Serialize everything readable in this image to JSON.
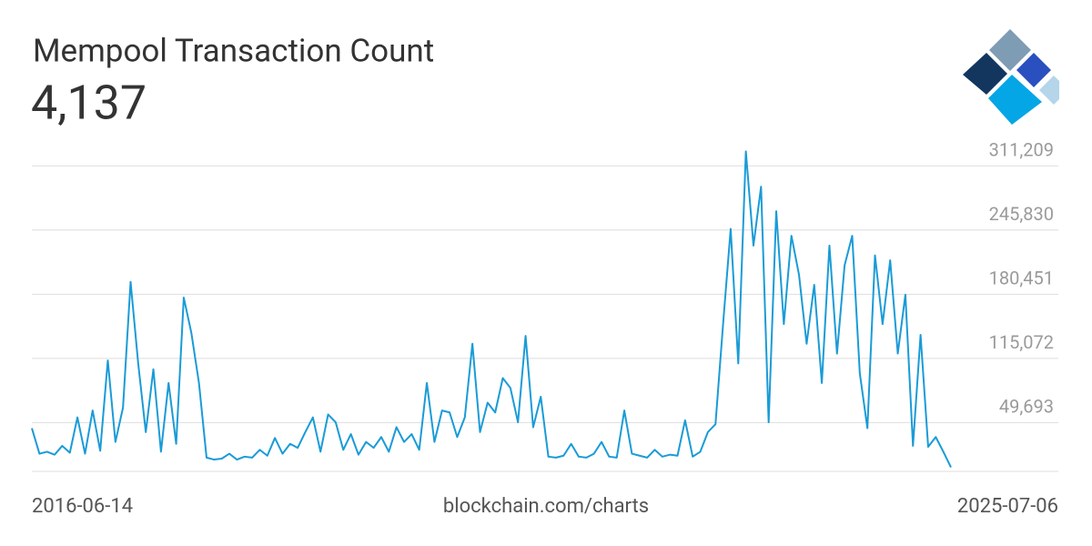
{
  "chart_data": {
    "type": "line",
    "title": "Mempool Transaction Count",
    "subtitle": "4,137",
    "source": "blockchain.com/charts",
    "color": "#1a9bd7",
    "grid": true,
    "ylim": [
      0,
      330000
    ],
    "yticks": [
      {
        "value": 49693,
        "label": "49,693"
      },
      {
        "value": 115072,
        "label": "115,072"
      },
      {
        "value": 180451,
        "label": "180,451"
      },
      {
        "value": 245830,
        "label": "245,830"
      },
      {
        "value": 311209,
        "label": "311,209"
      }
    ],
    "categories": [
      "2016-06-14",
      null,
      null,
      null,
      null,
      null,
      null,
      null,
      null,
      null,
      null,
      null,
      null,
      null,
      null,
      null,
      null,
      null,
      null,
      null,
      null,
      null,
      null,
      null,
      null,
      null,
      null,
      null,
      null,
      null,
      null,
      null,
      null,
      null,
      null,
      null,
      null,
      null,
      null,
      null,
      null,
      null,
      null,
      null,
      null,
      null,
      null,
      null,
      null,
      null,
      null,
      null,
      null,
      null,
      null,
      null,
      null,
      null,
      null,
      null,
      null,
      null,
      null,
      null,
      null,
      null,
      null,
      null,
      null,
      null,
      null,
      null,
      null,
      null,
      null,
      null,
      null,
      null,
      null,
      null,
      null,
      null,
      null,
      null,
      null,
      null,
      null,
      null,
      null,
      null,
      null,
      null,
      null,
      null,
      null,
      null,
      null,
      null,
      null,
      null,
      null,
      null,
      null,
      null,
      null,
      null,
      null,
      null,
      null,
      null,
      null,
      null,
      null,
      null,
      null,
      null,
      null,
      null,
      null,
      null,
      null,
      "2025-07-06"
    ],
    "values": [
      44000,
      18000,
      20000,
      17000,
      26000,
      19000,
      55000,
      18000,
      62000,
      21000,
      113000,
      30000,
      65000,
      193000,
      110000,
      40000,
      104000,
      20000,
      90000,
      28000,
      177000,
      141000,
      90000,
      14000,
      12000,
      13000,
      18000,
      12000,
      15000,
      14000,
      22000,
      16000,
      34000,
      18000,
      28000,
      24000,
      40000,
      55000,
      20000,
      58000,
      50000,
      22000,
      38000,
      17000,
      30000,
      24000,
      35000,
      20000,
      45000,
      30000,
      38000,
      22000,
      90000,
      30000,
      62000,
      60000,
      35000,
      55000,
      130000,
      40000,
      70000,
      60000,
      95000,
      85000,
      50000,
      138000,
      45000,
      76000,
      15000,
      14000,
      16000,
      28000,
      15000,
      14000,
      18000,
      30000,
      15000,
      14000,
      62000,
      18000,
      16000,
      14000,
      22000,
      15000,
      17000,
      16000,
      52000,
      15000,
      20000,
      40000,
      48000,
      150000,
      247000,
      110000,
      326000,
      230000,
      290000,
      50000,
      265000,
      150000,
      240000,
      200000,
      130000,
      190000,
      90000,
      230000,
      120000,
      210000,
      240000,
      100000,
      44000,
      220000,
      150000,
      215000,
      120000,
      180000,
      26000,
      139000,
      25000,
      35000,
      20000,
      4137
    ]
  }
}
